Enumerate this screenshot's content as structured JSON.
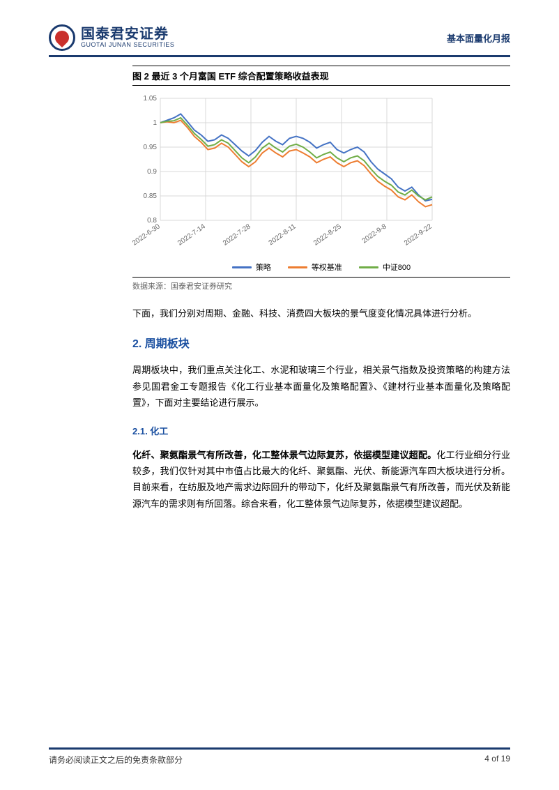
{
  "header": {
    "logo_cn": "国泰君安证券",
    "logo_en": "GUOTAI JUNAN SECURITIES",
    "right": "基本面量化月报"
  },
  "figure": {
    "title": "图 2 最近 3 个月富国 ETF 综合配置策略收益表现",
    "source": "数据来源：国泰君安证券研究",
    "chart": {
      "type": "line",
      "ylim": [
        0.8,
        1.05
      ],
      "yticks": [
        0.8,
        0.85,
        0.9,
        0.95,
        1,
        1.05
      ],
      "xticks": [
        "2022-6-30",
        "2022-7-14",
        "2022-7-28",
        "2022-8-11",
        "2022-8-25",
        "2022-9-8",
        "2022-9-22"
      ],
      "grid_color": "#d9d9d9",
      "background_color": "#ffffff",
      "series": [
        {
          "name": "策略",
          "color": "#4472c4",
          "width": 2,
          "values": [
            1.0,
            1.005,
            1.01,
            1.018,
            1.002,
            0.985,
            0.975,
            0.962,
            0.965,
            0.975,
            0.968,
            0.955,
            0.942,
            0.932,
            0.943,
            0.96,
            0.972,
            0.962,
            0.955,
            0.968,
            0.972,
            0.968,
            0.96,
            0.948,
            0.955,
            0.96,
            0.945,
            0.938,
            0.945,
            0.95,
            0.94,
            0.92,
            0.905,
            0.895,
            0.885,
            0.868,
            0.86,
            0.868,
            0.852,
            0.84,
            0.843
          ]
        },
        {
          "name": "等权基准",
          "color": "#ed7d31",
          "width": 2,
          "values": [
            1.0,
            1.002,
            1.0,
            1.005,
            0.99,
            0.972,
            0.96,
            0.945,
            0.948,
            0.958,
            0.95,
            0.935,
            0.92,
            0.91,
            0.92,
            0.938,
            0.948,
            0.938,
            0.93,
            0.942,
            0.945,
            0.938,
            0.93,
            0.918,
            0.925,
            0.93,
            0.918,
            0.91,
            0.918,
            0.922,
            0.912,
            0.895,
            0.88,
            0.87,
            0.862,
            0.848,
            0.842,
            0.852,
            0.838,
            0.828,
            0.832
          ]
        },
        {
          "name": "中证800",
          "color": "#70ad47",
          "width": 2,
          "values": [
            1.0,
            1.003,
            1.004,
            1.01,
            0.995,
            0.978,
            0.966,
            0.952,
            0.955,
            0.965,
            0.958,
            0.943,
            0.928,
            0.918,
            0.93,
            0.948,
            0.958,
            0.948,
            0.94,
            0.952,
            0.956,
            0.95,
            0.94,
            0.928,
            0.935,
            0.94,
            0.928,
            0.92,
            0.928,
            0.932,
            0.922,
            0.905,
            0.89,
            0.88,
            0.872,
            0.858,
            0.852,
            0.862,
            0.85,
            0.842,
            0.848
          ]
        }
      ]
    }
  },
  "para1": "下面，我们分别对周期、金融、科技、消费四大板块的景气度变化情况具体进行分析。",
  "h2": "2.  周期板块",
  "para2": "周期板块中，我们重点关注化工、水泥和玻璃三个行业，相关景气指数及投资策略的构建方法参见国君金工专题报告《化工行业基本面量化及策略配置》、《建材行业基本面量化及策略配置》，下面对主要结论进行展示。",
  "h3": "2.1.  化工",
  "para3_bold": "化纤、聚氨酯景气有所改善，化工整体景气边际复苏，依据模型建议超配。",
  "para3_rest": "化工行业细分行业较多，我们仅针对其中市值占比最大的化纤、聚氨酯、光伏、新能源汽车四大板块进行分析。目前来看，在纺服及地产需求边际回升的带动下，化纤及聚氨酯景气有所改善，而光伏及新能源汽车的需求则有所回落。综合来看，化工整体景气边际复苏，依据模型建议超配。",
  "footer": {
    "left": "请务必阅读正文之后的免责条款部分",
    "right": "4 of 19"
  }
}
